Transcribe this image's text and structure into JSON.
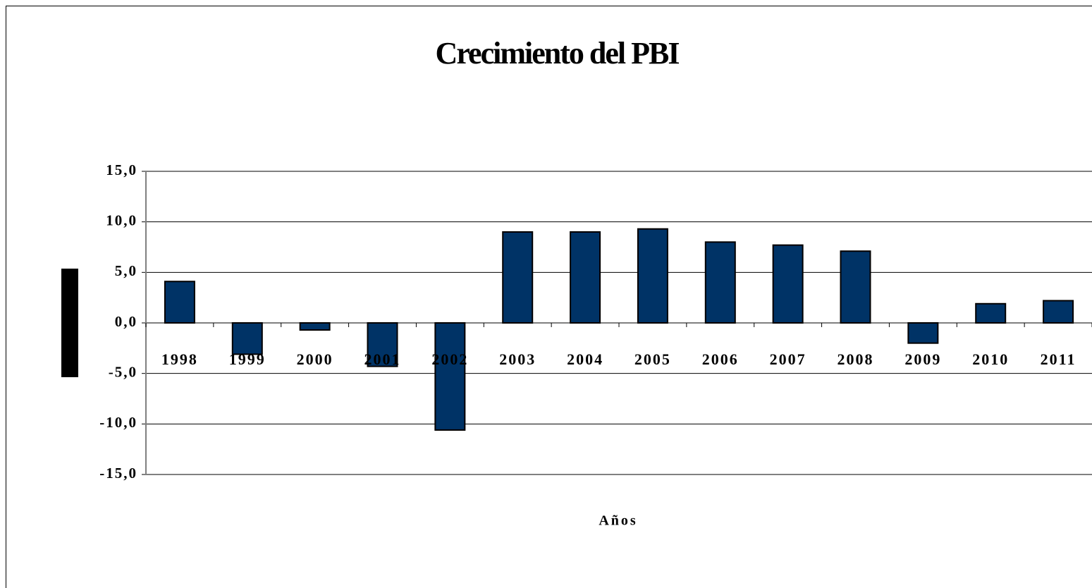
{
  "chart_data": {
    "type": "bar",
    "title": "Crecimiento del PBI",
    "x_label": "Años",
    "categories": [
      "1998",
      "1999",
      "2000",
      "2001",
      "2002",
      "2003",
      "2004",
      "2005",
      "2006",
      "2007",
      "2008",
      "2009",
      "2010",
      "2011"
    ],
    "values": [
      4.1,
      -3.1,
      -0.7,
      -4.3,
      -10.6,
      9.0,
      9.0,
      9.3,
      8.0,
      7.7,
      7.1,
      -2.0,
      1.9,
      2.2
    ],
    "color": "#003366",
    "ylim": [
      -15,
      15
    ],
    "yticks": [
      {
        "value": -15,
        "label": "-15,0"
      },
      {
        "value": -10,
        "label": "-10,0"
      },
      {
        "value": -5,
        "label": "-5,0"
      },
      {
        "value": 0,
        "label": "0,0"
      },
      {
        "value": 5,
        "label": "5,0"
      },
      {
        "value": 10,
        "label": "10,0"
      },
      {
        "value": 15,
        "label": "15,0"
      }
    ],
    "grid": true
  }
}
